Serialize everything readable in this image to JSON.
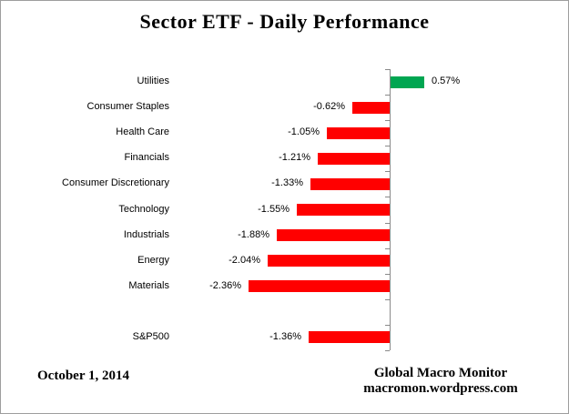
{
  "title": "Sector ETF - Daily Performance",
  "footer": {
    "date": "October 1, 2014",
    "credit_line1": "Global Macro Monitor",
    "credit_line2": "macromon.wordpress.com"
  },
  "colors": {
    "positive_bar": "#00A651",
    "negative_bar": "#FF0000",
    "axis": "#8a8a8a",
    "text": "#000000"
  },
  "chart_data": {
    "type": "bar",
    "orientation": "horizontal",
    "title": "Sector ETF - Daily Performance",
    "xlabel": "",
    "ylabel": "",
    "value_axis_labels_visible": false,
    "approx_value_range": [
      -2.5,
      0.75
    ],
    "legend": "none",
    "rows": [
      {
        "label": "Utilities",
        "value": 0.57,
        "display": "0.57%",
        "separated": false
      },
      {
        "label": "Consumer Staples",
        "value": -0.62,
        "display": "-0.62%",
        "separated": false
      },
      {
        "label": "Health Care",
        "value": -1.05,
        "display": "-1.05%",
        "separated": false
      },
      {
        "label": "Financials",
        "value": -1.21,
        "display": "-1.21%",
        "separated": false
      },
      {
        "label": "Consumer Discretionary",
        "value": -1.33,
        "display": "-1.33%",
        "separated": false
      },
      {
        "label": "Technology",
        "value": -1.55,
        "display": "-1.55%",
        "separated": false
      },
      {
        "label": "Industrials",
        "value": -1.88,
        "display": "-1.88%",
        "separated": false
      },
      {
        "label": "Energy",
        "value": -2.04,
        "display": "-2.04%",
        "separated": false
      },
      {
        "label": "Materials",
        "value": -2.36,
        "display": "-2.36%",
        "separated": false
      },
      {
        "label": "S&P500",
        "value": -1.36,
        "display": "-1.36%",
        "separated": true
      }
    ]
  }
}
